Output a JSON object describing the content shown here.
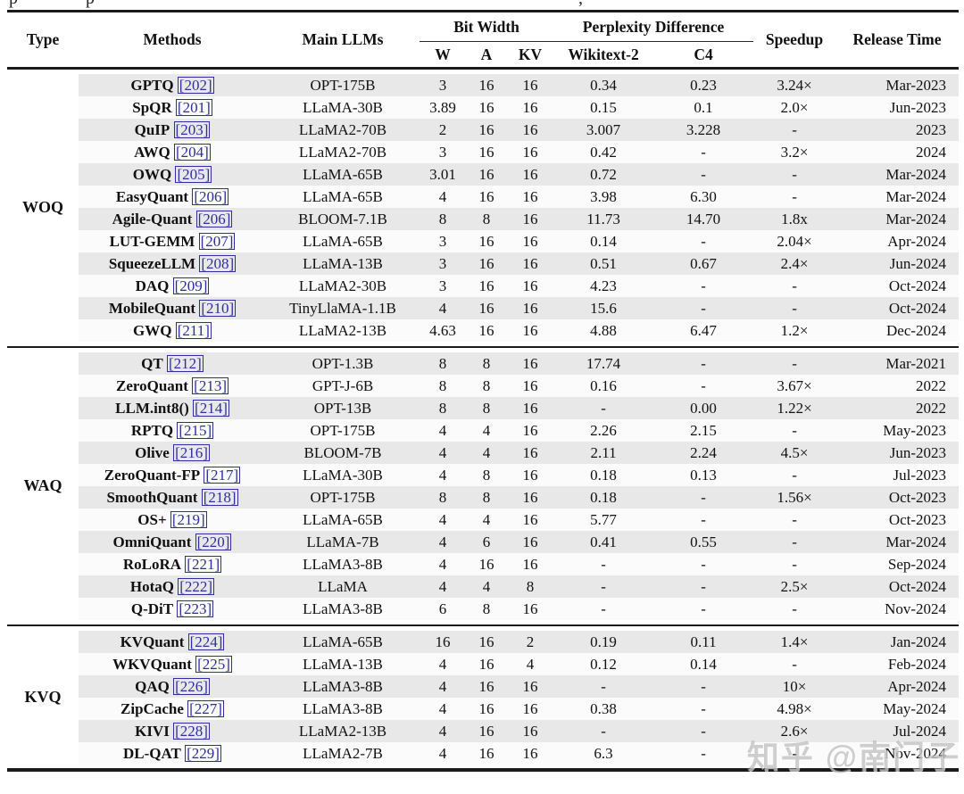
{
  "page": {
    "caption_fragments": [
      "p",
      "p",
      ","
    ],
    "watermark": "知乎 @南门子"
  },
  "colors": {
    "citation_link": "#2e2e9e",
    "stripe_row": "#e8e8e8",
    "rule": "#1b1b1b"
  },
  "table": {
    "headers": {
      "type": "Type",
      "methods": "Methods",
      "main_llms": "Main LLMs",
      "bit_width": "Bit Width",
      "w": "W",
      "a": "A",
      "kv": "KV",
      "perplexity_difference": "Perplexity Difference",
      "wikitext2": "Wikitext-2",
      "c4": "C4",
      "speedup": "Speedup",
      "release_time": "Release Time"
    },
    "sections": [
      {
        "type": "WOQ",
        "rows": [
          {
            "method": "GPTQ",
            "cite": "[202]",
            "llm": "OPT-175B",
            "w": "3",
            "a": "16",
            "kv": "16",
            "wikitext2": "0.34",
            "c4": "0.23",
            "speedup": "3.24×",
            "release": "Mar-2023"
          },
          {
            "method": "SpQR",
            "cite": "[201]",
            "llm": "LLaMA-30B",
            "w": "3.89",
            "a": "16",
            "kv": "16",
            "wikitext2": "0.15",
            "c4": "0.1",
            "speedup": "2.0×",
            "release": "Jun-2023"
          },
          {
            "method": "QuIP",
            "cite": "[203]",
            "llm": "LLaMA2-70B",
            "w": "2",
            "a": "16",
            "kv": "16",
            "wikitext2": "3.007",
            "c4": "3.228",
            "speedup": "-",
            "release": "2023"
          },
          {
            "method": "AWQ",
            "cite": "[204]",
            "llm": "LLaMA2-70B",
            "w": "3",
            "a": "16",
            "kv": "16",
            "wikitext2": "0.42",
            "c4": "-",
            "speedup": "3.2×",
            "release": "2024"
          },
          {
            "method": "OWQ",
            "cite": "[205]",
            "llm": "LLaMA-65B",
            "w": "3.01",
            "a": "16",
            "kv": "16",
            "wikitext2": "0.72",
            "c4": "-",
            "speedup": "-",
            "release": "Mar-2024"
          },
          {
            "method": "EasyQuant",
            "cite": "[206]",
            "llm": "LLaMA-65B",
            "w": "4",
            "a": "16",
            "kv": "16",
            "wikitext2": "3.98",
            "c4": "6.30",
            "speedup": "-",
            "release": "Mar-2024"
          },
          {
            "method": "Agile-Quant",
            "cite": "[206]",
            "llm": "BLOOM-7.1B",
            "w": "8",
            "a": "8",
            "kv": "16",
            "wikitext2": "11.73",
            "c4": "14.70",
            "speedup": "1.8x",
            "release": "Mar-2024"
          },
          {
            "method": "LUT-GEMM",
            "cite": "[207]",
            "llm": "LLaMA-65B",
            "w": "3",
            "a": "16",
            "kv": "16",
            "wikitext2": "0.14",
            "c4": "-",
            "speedup": "2.04×",
            "release": "Apr-2024"
          },
          {
            "method": "SqueezeLLM",
            "cite": "[208]",
            "llm": "LLaMA-13B",
            "w": "3",
            "a": "16",
            "kv": "16",
            "wikitext2": "0.51",
            "c4": "0.67",
            "speedup": "2.4×",
            "release": "Jun-2024"
          },
          {
            "method": "DAQ",
            "cite": "[209]",
            "llm": "LLaMA2-30B",
            "w": "3",
            "a": "16",
            "kv": "16",
            "wikitext2": "4.23",
            "c4": "-",
            "speedup": "-",
            "release": "Oct-2024"
          },
          {
            "method": "MobileQuant",
            "cite": "[210]",
            "llm": "TinyLlaMA-1.1B",
            "w": "4",
            "a": "16",
            "kv": "16",
            "wikitext2": "15.6",
            "c4": "-",
            "speedup": "-",
            "release": "Oct-2024"
          },
          {
            "method": "GWQ",
            "cite": "[211]",
            "llm": "LLaMA2-13B",
            "w": "4.63",
            "a": "16",
            "kv": "16",
            "wikitext2": "4.88",
            "c4": "6.47",
            "speedup": "1.2×",
            "release": "Dec-2024"
          }
        ]
      },
      {
        "type": "WAQ",
        "rows": [
          {
            "method": "QT",
            "cite": "[212]",
            "llm": "OPT-1.3B",
            "w": "8",
            "a": "8",
            "kv": "16",
            "wikitext2": "17.74",
            "c4": "-",
            "speedup": "-",
            "release": "Mar-2021"
          },
          {
            "method": "ZeroQuant",
            "cite": "[213]",
            "llm": "GPT-J-6B",
            "w": "8",
            "a": "8",
            "kv": "16",
            "wikitext2": "0.16",
            "c4": "-",
            "speedup": "3.67×",
            "release": "2022"
          },
          {
            "method": "LLM.int8()",
            "cite": "[214]",
            "llm": "OPT-13B",
            "w": "8",
            "a": "8",
            "kv": "16",
            "wikitext2": "-",
            "c4": "0.00",
            "speedup": "1.22×",
            "release": "2022"
          },
          {
            "method": "RPTQ",
            "cite": "[215]",
            "llm": "OPT-175B",
            "w": "4",
            "a": "4",
            "kv": "16",
            "wikitext2": "2.26",
            "c4": "2.15",
            "speedup": "-",
            "release": "May-2023"
          },
          {
            "method": "Olive",
            "cite": "[216]",
            "llm": "BLOOM-7B",
            "w": "4",
            "a": "4",
            "kv": "16",
            "wikitext2": "2.11",
            "c4": "2.24",
            "speedup": "4.5×",
            "release": "Jun-2023"
          },
          {
            "method": "ZeroQuant-FP",
            "cite": "[217]",
            "llm": "LLaMA-30B",
            "w": "4",
            "a": "8",
            "kv": "16",
            "wikitext2": "0.18",
            "c4": "0.13",
            "speedup": "-",
            "release": "Jul-2023"
          },
          {
            "method": "SmoothQuant",
            "cite": "[218]",
            "llm": "OPT-175B",
            "w": "8",
            "a": "8",
            "kv": "16",
            "wikitext2": "0.18",
            "c4": "-",
            "speedup": "1.56×",
            "release": "Oct-2023"
          },
          {
            "method": "OS+",
            "cite": "[219]",
            "llm": "LLaMA-65B",
            "w": "4",
            "a": "4",
            "kv": "16",
            "wikitext2": "5.77",
            "c4": "-",
            "speedup": "-",
            "release": "Oct-2023"
          },
          {
            "method": "OmniQuant",
            "cite": "[220]",
            "llm": "LLaMA-7B",
            "w": "4",
            "a": "6",
            "kv": "16",
            "wikitext2": "0.41",
            "c4": "0.55",
            "speedup": "-",
            "release": "Mar-2024"
          },
          {
            "method": "RoLoRA",
            "cite": "[221]",
            "llm": "LLaMA3-8B",
            "w": "4",
            "a": "16",
            "kv": "16",
            "wikitext2": "-",
            "c4": "-",
            "speedup": "-",
            "release": "Sep-2024"
          },
          {
            "method": "HotaQ",
            "cite": "[222]",
            "llm": "LLaMA",
            "w": "4",
            "a": "4",
            "kv": "8",
            "wikitext2": "-",
            "c4": "-",
            "speedup": "2.5×",
            "release": "Oct-2024"
          },
          {
            "method": "Q-DiT",
            "cite": "[223]",
            "llm": "LLaMA3-8B",
            "w": "6",
            "a": "8",
            "kv": "16",
            "wikitext2": "-",
            "c4": "-",
            "speedup": "-",
            "release": "Nov-2024"
          }
        ]
      },
      {
        "type": "KVQ",
        "rows": [
          {
            "method": "KVQuant",
            "cite": "[224]",
            "llm": "LLaMA-65B",
            "w": "16",
            "a": "16",
            "kv": "2",
            "wikitext2": "0.19",
            "c4": "0.11",
            "speedup": "1.4×",
            "release": "Jan-2024"
          },
          {
            "method": "WKVQuant",
            "cite": "[225]",
            "llm": "LLaMA-13B",
            "w": "4",
            "a": "16",
            "kv": "4",
            "wikitext2": "0.12",
            "c4": "0.14",
            "speedup": "-",
            "release": "Feb-2024"
          },
          {
            "method": "QAQ",
            "cite": "[226]",
            "llm": "LLaMA3-8B",
            "w": "4",
            "a": "16",
            "kv": "16",
            "wikitext2": "-",
            "c4": "-",
            "speedup": "10×",
            "release": "Apr-2024"
          },
          {
            "method": "ZipCache",
            "cite": "[227]",
            "llm": "LLaMA3-8B",
            "w": "4",
            "a": "16",
            "kv": "16",
            "wikitext2": "0.38",
            "c4": "-",
            "speedup": "4.98×",
            "release": "May-2024"
          },
          {
            "method": "KIVI",
            "cite": "[228]",
            "llm": "LLaMA2-13B",
            "w": "4",
            "a": "16",
            "kv": "16",
            "wikitext2": "-",
            "c4": "-",
            "speedup": "2.6×",
            "release": "Jul-2024"
          },
          {
            "method": "DL-QAT",
            "cite": "[229]",
            "llm": "LLaMA2-7B",
            "w": "4",
            "a": "16",
            "kv": "16",
            "wikitext2": "6.3",
            "c4": "-",
            "speedup": "-",
            "release": "Nov-2024"
          }
        ]
      }
    ]
  }
}
